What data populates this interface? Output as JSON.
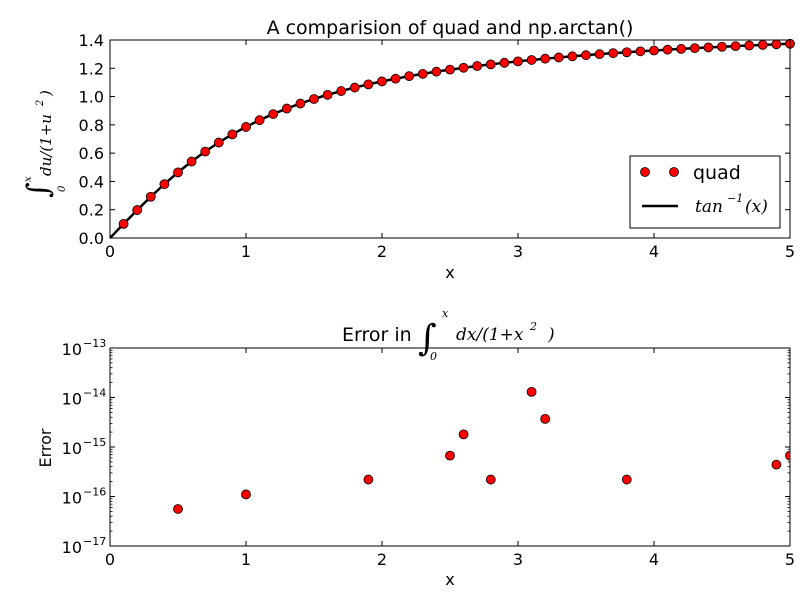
{
  "chart_data": [
    {
      "type": "line",
      "title": "A comparision of quad and np.arctan()",
      "xlabel": "x",
      "ylabel_parts": {
        "integral": "∫",
        "lower": "0",
        "upper": "x",
        "integrand": "du/(1+u",
        "exp": "2",
        "close": ")"
      },
      "xlim": [
        0,
        5
      ],
      "ylim": [
        0,
        1.4
      ],
      "xticks": [
        "0",
        "1",
        "2",
        "3",
        "4",
        "5"
      ],
      "yticks": [
        "0.0",
        "0.2",
        "0.4",
        "0.6",
        "0.8",
        "1.0",
        "1.2",
        "1.4"
      ],
      "legend_position": "lower-right",
      "series": [
        {
          "name": "quad",
          "style": "markers",
          "color": "#ff0000",
          "x": [
            0.1,
            0.2,
            0.3,
            0.4,
            0.5,
            0.6,
            0.7,
            0.8,
            0.9,
            1.0,
            1.1,
            1.2,
            1.3,
            1.4,
            1.5,
            1.6,
            1.7,
            1.8,
            1.9,
            2.0,
            2.1,
            2.2,
            2.3,
            2.4,
            2.5,
            2.6,
            2.7,
            2.8,
            2.9,
            3.0,
            3.1,
            3.2,
            3.3,
            3.4,
            3.5,
            3.6,
            3.7,
            3.8,
            3.9,
            4.0,
            4.1,
            4.2,
            4.3,
            4.4,
            4.5,
            4.6,
            4.7,
            4.8,
            4.9,
            5.0
          ],
          "y": [
            0.0997,
            0.1974,
            0.2915,
            0.3805,
            0.4636,
            0.5404,
            0.6107,
            0.6747,
            0.7328,
            0.7854,
            0.833,
            0.8761,
            0.9151,
            0.9505,
            0.9828,
            1.0122,
            1.0391,
            1.0637,
            1.0863,
            1.1071,
            1.1263,
            1.1442,
            1.1607,
            1.176,
            1.1903,
            1.2036,
            1.2161,
            1.2278,
            1.2387,
            1.249,
            1.2588,
            1.2679,
            1.2766,
            1.2847,
            1.2925,
            1.2998,
            1.3068,
            1.3135,
            1.3198,
            1.3258,
            1.3316,
            1.3371,
            1.3423,
            1.3473,
            1.3521,
            1.3567,
            1.3612,
            1.3654,
            1.3694,
            1.3734
          ]
        },
        {
          "name_parts": {
            "base": "tan",
            "exp": "−1",
            "arg": "(x)"
          },
          "style": "line",
          "color": "#000000",
          "function": "arctan"
        }
      ]
    },
    {
      "type": "scatter",
      "title_parts": {
        "prefix": "Error in",
        "integral": "∫",
        "lower": "0",
        "upper": "x",
        "integrand": "dx/(1+x",
        "exp": "2",
        "close": ")"
      },
      "xlabel": "x",
      "ylabel": "Error",
      "yscale": "log",
      "xlim": [
        0,
        5
      ],
      "ylim": [
        1e-17,
        1e-13
      ],
      "xticks": [
        "0",
        "1",
        "2",
        "3",
        "4",
        "5"
      ],
      "yticks": [
        {
          "base": "10",
          "exp": "−17",
          "value": 1e-17
        },
        {
          "base": "10",
          "exp": "−16",
          "value": 1e-16
        },
        {
          "base": "10",
          "exp": "−15",
          "value": 1e-15
        },
        {
          "base": "10",
          "exp": "−14",
          "value": 1e-14
        },
        {
          "base": "10",
          "exp": "−13",
          "value": 1e-13
        }
      ],
      "series": [
        {
          "style": "markers",
          "color": "#ff0000",
          "x": [
            0.5,
            1.0,
            1.9,
            2.5,
            2.6,
            2.8,
            3.1,
            3.2,
            3.8,
            4.9,
            5.0
          ],
          "y": [
            5.6e-17,
            1.1e-16,
            2.2e-16,
            6.7e-16,
            1.8e-15,
            2.2e-16,
            1.3e-14,
            3.7e-15,
            2.2e-16,
            4.4e-16,
            6.7e-16
          ]
        }
      ]
    }
  ]
}
